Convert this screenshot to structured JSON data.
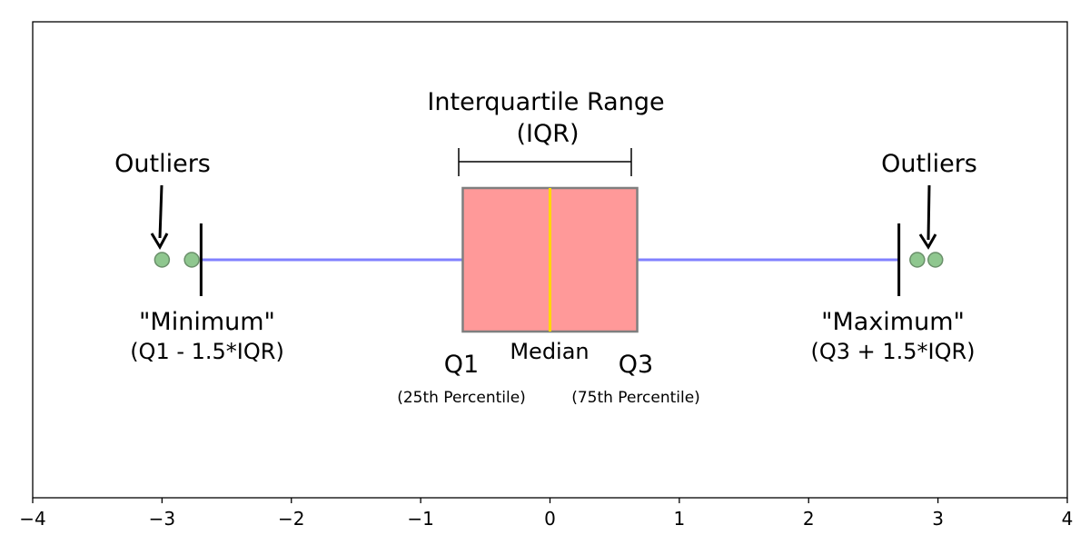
{
  "chart_data": {
    "type": "boxplot",
    "title": "",
    "xlabel": "",
    "ylabel": "",
    "xlim": [
      -4,
      4
    ],
    "xticks": [
      -4,
      -3,
      -2,
      -1,
      0,
      1,
      2,
      3,
      4
    ],
    "xtick_labels": [
      "−4",
      "−3",
      "−2",
      "−1",
      "0",
      "1",
      "2",
      "3",
      "4"
    ],
    "grid": false,
    "box": {
      "q1": -0.6745,
      "median": 0,
      "q3": 0.6745,
      "whisker_low": -2.698,
      "whisker_high": 2.698,
      "outliers": [
        -3.0,
        -2.77,
        2.84,
        2.98
      ]
    },
    "colors": {
      "box_fill": "#ff9999",
      "box_edge": "#7f7f7f",
      "median": "#ffd700",
      "whisker": "#8080ff",
      "cap": "#000000",
      "outlier_fill": "#8fc78f",
      "outlier_edge": "#6a8f6a"
    },
    "annotations": {
      "iqr_line1": "Interquartile Range",
      "iqr_line2": "(IQR)",
      "outliers_left": "Outliers",
      "outliers_right": "Outliers",
      "minimum": "\"Minimum\"",
      "minimum_formula": "(Q1 - 1.5*IQR)",
      "maximum": "\"Maximum\"",
      "maximum_formula": "(Q3 + 1.5*IQR)",
      "median": "Median",
      "q1": "Q1",
      "q1_sub": "(25th Percentile)",
      "q3": "Q3",
      "q3_sub": "(75th Percentile)"
    }
  }
}
